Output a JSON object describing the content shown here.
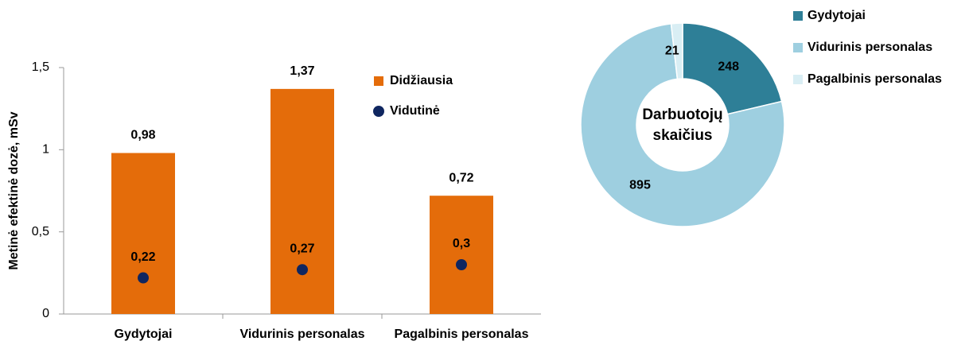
{
  "chart_data": [
    {
      "type": "bar",
      "y_label": "Metinė efektinė dozė, mSv",
      "categories": [
        "Gydytojai",
        "Vidurinis personalas",
        "Pagalbinis personalas"
      ],
      "series": [
        {
          "name": "Didžiausia",
          "type": "bar",
          "color": "#e46c0a",
          "values": [
            0.98,
            1.37,
            0.72
          ],
          "value_labels": [
            "0,98",
            "1,37",
            "0,72"
          ]
        },
        {
          "name": "Vidutinė",
          "type": "scatter",
          "color": "#0f2660",
          "values": [
            0.22,
            0.27,
            0.3
          ],
          "value_labels": [
            "0,22",
            "0,27",
            "0,3"
          ]
        }
      ],
      "ylim": [
        0,
        1.5
      ],
      "yticks": [
        0,
        {
          "value": 0.5,
          "label": "0,5"
        },
        1,
        {
          "value": 1.5,
          "label": "1,5"
        }
      ],
      "grid": false,
      "legend": "inside"
    },
    {
      "type": "pie",
      "donut": true,
      "center_label": "Darbuotojų skaičius",
      "categories": [
        "Gydytojai",
        "Vidurinis personalas",
        "Pagalbinis personalas"
      ],
      "values": [
        248,
        895,
        21
      ],
      "colors": [
        "#2e7f97",
        "#9ecfe0",
        "#d9eef4"
      ],
      "legend": "right"
    }
  ]
}
